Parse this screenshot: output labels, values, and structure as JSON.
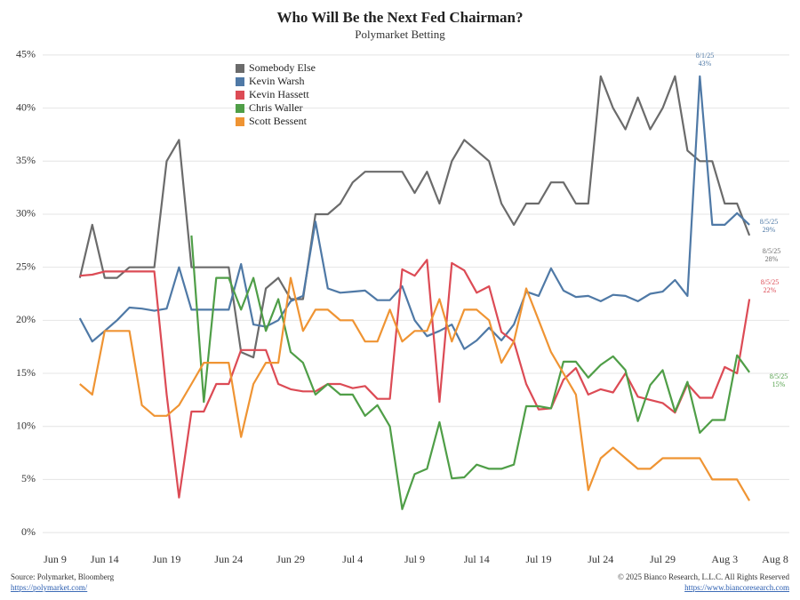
{
  "chart_data": {
    "type": "line",
    "title": "Who Will Be the Next Fed Chairman?",
    "subtitle": "Polymarket Betting",
    "categories": [
      "Jun 9",
      null,
      null,
      null,
      null,
      "Jun 14",
      null,
      null,
      null,
      null,
      "Jun 19",
      null,
      null,
      null,
      null,
      "Jun 24",
      null,
      null,
      null,
      null,
      "Jun 29",
      null,
      null,
      null,
      null,
      "Jul 4",
      null,
      null,
      null,
      null,
      "Jul 9",
      null,
      null,
      null,
      null,
      "Jul 14",
      null,
      null,
      null,
      null,
      "Jul 19",
      null,
      null,
      null,
      null,
      "Jul 24",
      null,
      null,
      null,
      null,
      "Jul 29",
      null,
      null,
      null,
      null,
      "Aug 3",
      null,
      null,
      null,
      null,
      "Aug 8"
    ],
    "series": [
      {
        "name": "Somebody Else",
        "color": "#6b6b6b",
        "values": [
          null,
          null,
          null,
          24,
          29,
          24,
          24,
          25,
          25,
          25,
          35,
          37,
          25,
          25,
          25,
          25,
          17,
          16.5,
          23,
          24,
          22,
          22,
          30,
          30,
          31,
          33,
          34,
          34,
          34,
          34,
          32,
          34,
          31,
          35,
          37,
          36,
          35,
          31,
          29,
          31,
          31,
          33,
          33,
          31,
          31,
          43,
          40,
          38,
          41,
          38,
          40,
          43,
          36,
          35,
          35,
          31,
          31,
          28,
          null,
          null,
          null
        ]
      },
      {
        "name": "Kevin Warsh",
        "color": "#4f79a6",
        "values": [
          null,
          null,
          null,
          20.2,
          18,
          19,
          20,
          21.2,
          21.1,
          20.9,
          21.1,
          25,
          21,
          21,
          21,
          21,
          25.3,
          19.6,
          19.4,
          20,
          21.8,
          22.3,
          29.3,
          23,
          22.6,
          22.7,
          22.8,
          21.9,
          21.9,
          23.2,
          20,
          18.5,
          19,
          19.6,
          17.3,
          18.1,
          19.3,
          18.1,
          19.6,
          22.7,
          22.3,
          24.9,
          22.8,
          22.2,
          22.3,
          21.8,
          22.4,
          22.3,
          21.8,
          22.5,
          22.7,
          23.8,
          22.3,
          43,
          29,
          29,
          30.1,
          29,
          null,
          null,
          null
        ]
      },
      {
        "name": "Kevin Hassett",
        "color": "#dc4b55",
        "values": [
          null,
          null,
          null,
          24.2,
          24.3,
          24.6,
          24.6,
          24.6,
          24.6,
          24.6,
          13,
          3.3,
          11.4,
          11.4,
          14,
          14,
          17.2,
          17.2,
          17.2,
          14,
          13.5,
          13.3,
          13.3,
          14,
          14,
          13.6,
          13.8,
          12.6,
          12.6,
          24.8,
          24.2,
          25.7,
          12.3,
          25.4,
          24.7,
          22.6,
          23.2,
          18.9,
          18,
          14,
          11.6,
          11.7,
          14.4,
          15.5,
          13,
          13.5,
          13.2,
          15,
          12.8,
          12.5,
          12.2,
          11.3,
          14,
          12.7,
          12.7,
          15.6,
          15,
          22,
          null,
          null,
          null
        ]
      },
      {
        "name": "Chris Waller",
        "color": "#4f9e47",
        "values": [
          null,
          null,
          null,
          null,
          null,
          null,
          null,
          null,
          null,
          null,
          null,
          null,
          28,
          12.3,
          24,
          24,
          21,
          24,
          19,
          22,
          17,
          16,
          13,
          14,
          13,
          13,
          11,
          12,
          10,
          2.2,
          5.5,
          6,
          10.4,
          5.1,
          5.2,
          6.4,
          6,
          6,
          6.4,
          11.9,
          11.9,
          11.7,
          16.1,
          16.1,
          14.6,
          15.8,
          16.6,
          15.3,
          10.5,
          13.9,
          15.3,
          11.4,
          14.2,
          9.4,
          10.6,
          10.6,
          16.7,
          15.1,
          null,
          null,
          null
        ]
      },
      {
        "name": "Scott Bessent",
        "color": "#ef9433",
        "values": [
          null,
          null,
          null,
          14,
          13,
          19,
          19,
          19,
          12,
          11,
          11,
          12,
          14,
          16,
          16,
          16,
          9,
          14,
          16,
          16,
          24,
          19,
          21,
          21,
          20,
          20,
          18,
          18,
          21,
          18,
          19,
          19,
          22,
          18,
          21,
          21,
          20,
          16,
          18,
          23,
          20,
          17,
          15,
          13,
          4,
          7,
          8,
          7,
          6,
          6,
          7,
          7,
          7,
          7,
          5,
          5,
          5,
          3,
          null,
          null,
          null
        ]
      }
    ],
    "ylim": [
      -1,
      46
    ],
    "yticks": [
      {
        "value": 0,
        "label": "0%"
      },
      {
        "value": 5,
        "label": "5%"
      },
      {
        "value": 10,
        "label": "10%"
      },
      {
        "value": 15,
        "label": "15%"
      },
      {
        "value": 20,
        "label": "20%"
      },
      {
        "value": 25,
        "label": "25%"
      },
      {
        "value": 30,
        "label": "30%"
      },
      {
        "value": 35,
        "label": "35%"
      },
      {
        "value": 40,
        "label": "40%"
      },
      {
        "value": 45,
        "label": "45%"
      }
    ],
    "grid": true,
    "legend": "upper-left",
    "annotations": [
      {
        "date": "8/1/25",
        "label": "43%",
        "color": "#4f79a6"
      },
      {
        "date": "8/5/25",
        "label": "29%",
        "color": "#4f79a6"
      },
      {
        "date": "8/5/25",
        "label": "28%",
        "color": "#6b6b6b"
      },
      {
        "date": "8/5/25",
        "label": "22%",
        "color": "#dc4b55"
      },
      {
        "date": "8/5/25",
        "label": "15%",
        "color": "#4f9e47"
      }
    ],
    "footer": {
      "source": "Source: Polymarket, Bloomberg",
      "source_url": "https://polymarket.com/",
      "copyright": "© 2025 Bianco Research, L.L.C. All Rights Reserved",
      "site_url": "https://www.biancoresearch.com"
    }
  }
}
